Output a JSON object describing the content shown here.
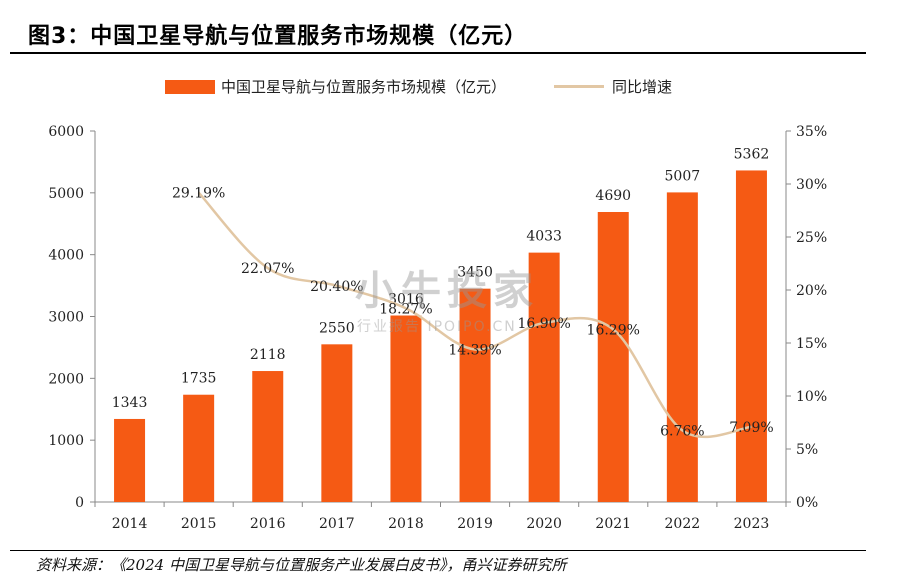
{
  "title": "图3：中国卫星导航与位置服务市场规模（亿元）",
  "source": "资料来源：《2024 中国卫星导航与位置服务产业发展白皮书》，甬兴证券研究所",
  "watermark": {
    "main": "小牛投家",
    "sub": "行业报告 IPOIPO.CN"
  },
  "colors": {
    "bar": "#F55A14",
    "line": "#E2C7A4"
  },
  "chart_data": {
    "type": "bar",
    "categories": [
      "2014",
      "2015",
      "2016",
      "2017",
      "2018",
      "2019",
      "2020",
      "2021",
      "2022",
      "2023"
    ],
    "series": [
      {
        "name": "中国卫星导航与位置服务市场规模（亿元）",
        "kind": "bar",
        "axis": "left",
        "values": [
          1343,
          1735,
          2118,
          2550,
          3016,
          3450,
          4033,
          4690,
          5007,
          5362
        ],
        "labels": [
          "1343",
          "1735",
          "2118",
          "2550",
          "3016",
          "3450",
          "4033",
          "4690",
          "5007",
          "5362"
        ]
      },
      {
        "name": "同比增速",
        "kind": "line",
        "axis": "right",
        "values": [
          null,
          29.19,
          22.07,
          20.4,
          18.27,
          14.39,
          16.9,
          16.29,
          6.76,
          7.09
        ],
        "labels": [
          "",
          "29.19%",
          "22.07%",
          "20.40%",
          "18.27%",
          "14.39%",
          "16.90%",
          "16.29%",
          "6.76%",
          "7.09%"
        ]
      }
    ],
    "ylim": [
      0,
      6000
    ],
    "yticks": [
      "0",
      "1000",
      "2000",
      "3000",
      "4000",
      "5000",
      "6000"
    ],
    "y2lim": [
      0,
      35
    ],
    "y2ticks": [
      "0%",
      "5%",
      "10%",
      "15%",
      "20%",
      "25%",
      "30%",
      "35%"
    ],
    "grid": false,
    "legend": "top"
  }
}
